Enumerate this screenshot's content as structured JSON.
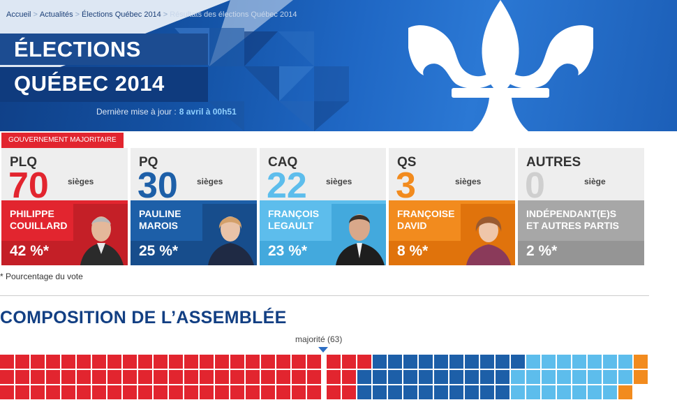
{
  "breadcrumb": {
    "items": [
      "Accueil",
      "Actualités",
      "Élections Québec 2014"
    ],
    "current": "Résultats des élections Québec 2014",
    "separator": ">"
  },
  "hero": {
    "title_line1": "ÉLECTIONS",
    "title_line2": "QUÉBEC 2014",
    "updated_label": "Dernière mise à jour :",
    "updated_value": "8 avril à 00h51"
  },
  "majority_tag": "GOUVERNEMENT MAJORITAIRE",
  "parties": [
    {
      "abbr": "PLQ",
      "seats": "70",
      "seats_word": "sièges",
      "leader_line1": "PHILIPPE",
      "leader_line2": "COUILLARD",
      "pct": "42 %*",
      "color": "#e2252f",
      "dark": "#c41f27"
    },
    {
      "abbr": "PQ",
      "seats": "30",
      "seats_word": "sièges",
      "leader_line1": "PAULINE",
      "leader_line2": "MAROIS",
      "pct": "25 %*",
      "color": "#1d5fa8",
      "dark": "#174d8c"
    },
    {
      "abbr": "CAQ",
      "seats": "22",
      "seats_word": "sièges",
      "leader_line1": "FRANÇOIS",
      "leader_line2": "LEGAULT",
      "pct": "23 %*",
      "color": "#5dbdec",
      "dark": "#43a9dd"
    },
    {
      "abbr": "QS",
      "seats": "3",
      "seats_word": "sièges",
      "leader_line1": "FRANÇOISE",
      "leader_line2": "DAVID",
      "pct": "8 %*",
      "color": "#f28b1e",
      "dark": "#e0730c"
    },
    {
      "abbr": "AUTRES",
      "seats": "0",
      "seats_word": "siège",
      "leader_line1": "INDÉPENDANT(E)S",
      "leader_line2": "ET AUTRES PARTIS",
      "pct": "2 %*",
      "color": "#a7a7a7",
      "dark": "#959595"
    }
  ],
  "footnote": "* Pourcentage du vote",
  "assembly": {
    "title": "COMPOSITION DE L’ASSEMBLÉE",
    "majority_label": "majorité (63)",
    "seat_counts": [
      70,
      30,
      22,
      3
    ]
  }
}
